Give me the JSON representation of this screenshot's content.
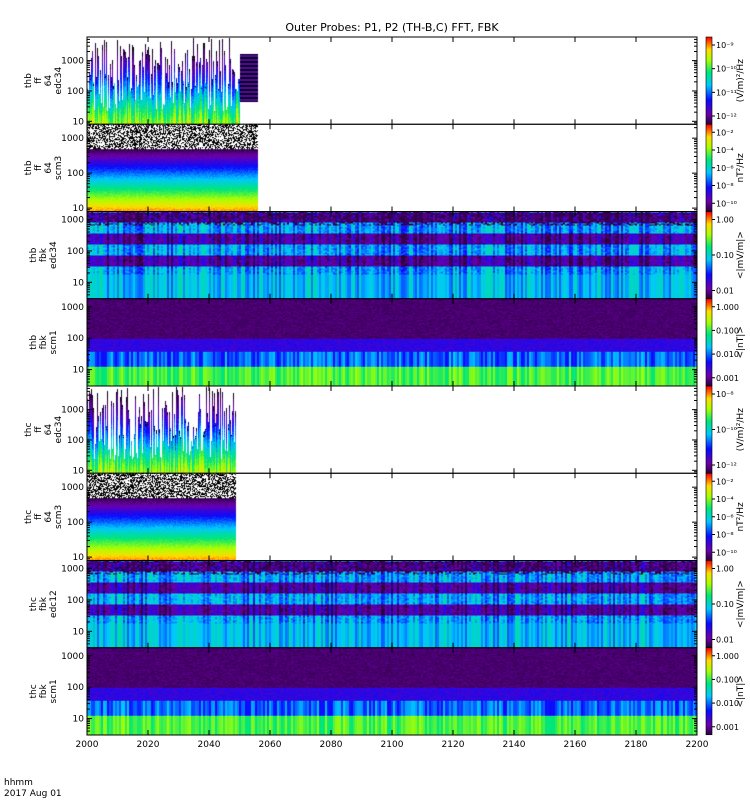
{
  "chart_data": {
    "type": "heatmap",
    "title": "Outer Probes: P1, P2 (TH-B,C) FFT, FBK",
    "xlabel": "hhmm",
    "xdate": "2017 Aug 01",
    "xlim": [
      2000,
      2200
    ],
    "xticks": [
      "2000",
      "2020",
      "2040",
      "2060",
      "2080",
      "2100",
      "2120",
      "2140",
      "2160",
      "2180",
      "2200"
    ],
    "panels": [
      {
        "ylabel": [
          "thb",
          "ff",
          "64",
          "edc34"
        ],
        "yscale": "log",
        "ylim": [
          8,
          6000
        ],
        "yticks": [
          "10",
          "100",
          "1000"
        ],
        "data_end": 2050,
        "extra_band": [
          2050,
          2056
        ],
        "colorbar": {
          "label": "(V/m)²/Hz",
          "ticks": [
            "10⁻⁹",
            "10⁻¹⁰",
            "10⁻¹¹",
            "10⁻¹²"
          ]
        },
        "style": "spiky"
      },
      {
        "ylabel": [
          "thb",
          "ff",
          "64",
          "scm3"
        ],
        "yscale": "log",
        "ylim": [
          8,
          2500
        ],
        "yticks": [
          "10",
          "100",
          "1000"
        ],
        "data_end": 2056,
        "colorbar": {
          "label": "nT²/Hz",
          "ticks": [
            "10⁻²",
            "10⁻⁴",
            "10⁻⁶",
            "10⁻⁸",
            "10⁻¹⁰"
          ]
        },
        "style": "banded"
      },
      {
        "ylabel": [
          "thb",
          "fbk",
          "edc34"
        ],
        "yscale": "log",
        "ylim": [
          3,
          1800
        ],
        "yticks": [
          "10",
          "100",
          "1000"
        ],
        "data_end": 2200,
        "colorbar": {
          "label": "<|mV/m|>",
          "ticks": [
            "1.00",
            "0.10",
            "0.01"
          ]
        },
        "style": "fbk-e"
      },
      {
        "ylabel": [
          "thb",
          "fbk",
          "scm1"
        ],
        "yscale": "log",
        "ylim": [
          3,
          1800
        ],
        "yticks": [
          "10",
          "100",
          "1000"
        ],
        "data_end": 2200,
        "colorbar": {
          "label": "<|nT|>",
          "ticks": [
            "1.000",
            "0.100",
            "0.010",
            "0.001"
          ]
        },
        "style": "fbk-b"
      },
      {
        "ylabel": [
          "thc",
          "ff",
          "64",
          "edc34"
        ],
        "yscale": "log",
        "ylim": [
          8,
          6000
        ],
        "yticks": [
          "10",
          "100",
          "1000"
        ],
        "data_end": 2049,
        "colorbar": {
          "label": "(V/m)²/Hz",
          "ticks": [
            "10⁻⁸",
            "10⁻¹⁰",
            "10⁻¹²"
          ]
        },
        "style": "spiky"
      },
      {
        "ylabel": [
          "thc",
          "ff",
          "64",
          "scm3"
        ],
        "yscale": "log",
        "ylim": [
          8,
          2500
        ],
        "yticks": [
          "10",
          "100",
          "1000"
        ],
        "data_end": 2049,
        "colorbar": {
          "label": "nT²/Hz",
          "ticks": [
            "10⁻²",
            "10⁻⁴",
            "10⁻⁶",
            "10⁻⁸",
            "10⁻¹⁰"
          ]
        },
        "style": "banded"
      },
      {
        "ylabel": [
          "thc",
          "fbk",
          "edc12"
        ],
        "yscale": "log",
        "ylim": [
          3,
          1800
        ],
        "yticks": [
          "10",
          "100",
          "1000"
        ],
        "data_end": 2200,
        "colorbar": {
          "label": "<|mV/m|>",
          "ticks": [
            "1.00",
            "0.10",
            "0.01"
          ]
        },
        "style": "fbk-e"
      },
      {
        "ylabel": [
          "thc",
          "fbk",
          "scm1"
        ],
        "yscale": "log",
        "ylim": [
          3,
          1800
        ],
        "yticks": [
          "10",
          "100",
          "1000"
        ],
        "data_end": 2200,
        "colorbar": {
          "label": "<|nT|>",
          "ticks": [
            "1.000",
            "0.100",
            "0.010",
            "0.001"
          ]
        },
        "style": "fbk-b"
      }
    ]
  }
}
